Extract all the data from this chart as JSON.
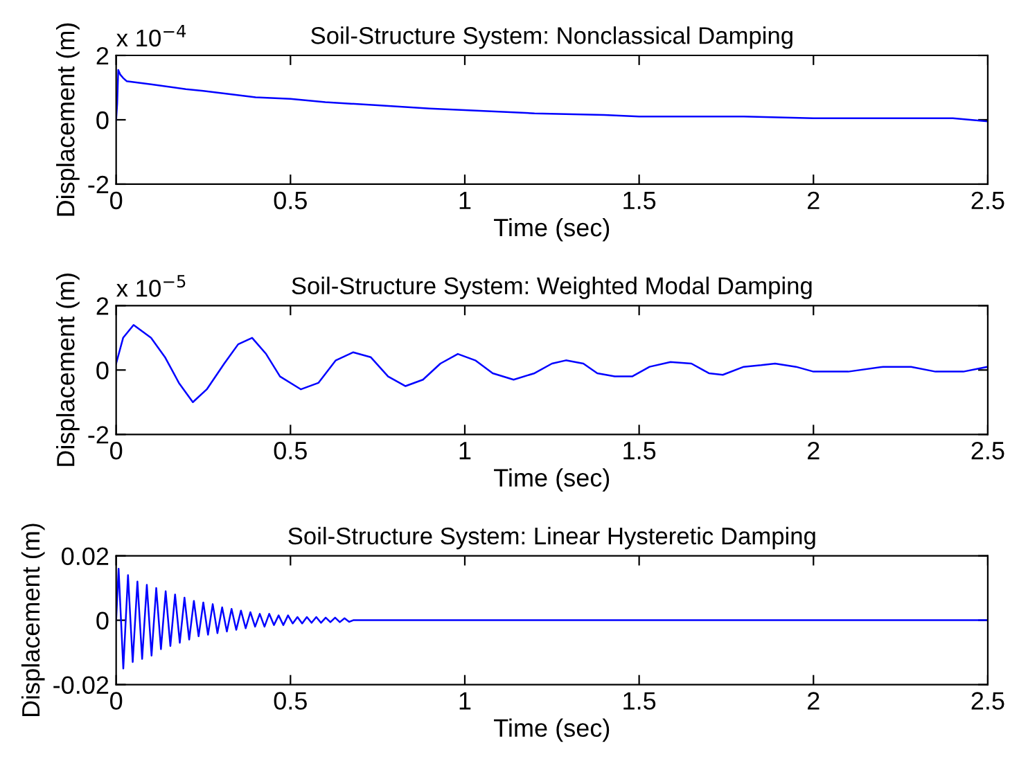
{
  "chart_data": [
    {
      "type": "line",
      "title": "Soil-Structure System: Nonclassical Damping",
      "xlabel": "Time (sec)",
      "ylabel": "Displacement (m)",
      "annotations": [
        "x 10$^{−4}$"
      ],
      "xlim": [
        0,
        2.5
      ],
      "xticks": [
        0,
        0.5,
        1,
        1.5,
        2,
        2.5
      ],
      "ylim": [
        -2,
        2
      ],
      "yticks": [
        -2,
        0,
        2
      ],
      "grid": false,
      "series": [
        {
          "color": "#0000ff",
          "x": [
            0,
            0.003,
            0.006,
            0.012,
            0.02,
            0.03,
            0.1,
            0.2,
            0.25,
            0.4,
            0.5,
            0.6,
            0.75,
            0.9,
            1.0,
            1.2,
            1.4,
            1.5,
            1.8,
            2.0,
            2.4,
            2.45,
            2.5
          ],
          "values": [
            0,
            0.5,
            1.55,
            1.4,
            1.3,
            1.2,
            1.1,
            0.95,
            0.9,
            0.7,
            0.65,
            0.55,
            0.45,
            0.35,
            0.3,
            0.2,
            0.15,
            0.1,
            0.1,
            0.05,
            0.05,
            0,
            -0.05
          ]
        }
      ]
    },
    {
      "type": "line",
      "title": "Soil-Structure System: Weighted Modal Damping",
      "xlabel": "Time (sec)",
      "ylabel": "Displacement (m)",
      "annotations": [
        "x 10$^{−5}$"
      ],
      "xlim": [
        0,
        2.5
      ],
      "xticks": [
        0,
        0.5,
        1,
        1.5,
        2,
        2.5
      ],
      "ylim": [
        -2,
        2
      ],
      "yticks": [
        -2,
        0,
        2
      ],
      "grid": false,
      "series": [
        {
          "color": "#0000ff",
          "x": [
            0,
            0.02,
            0.05,
            0.1,
            0.14,
            0.18,
            0.22,
            0.26,
            0.31,
            0.35,
            0.39,
            0.43,
            0.47,
            0.53,
            0.58,
            0.63,
            0.68,
            0.73,
            0.78,
            0.83,
            0.88,
            0.93,
            0.98,
            1.03,
            1.08,
            1.14,
            1.2,
            1.25,
            1.29,
            1.34,
            1.38,
            1.43,
            1.48,
            1.53,
            1.59,
            1.65,
            1.7,
            1.74,
            1.8,
            1.85,
            1.89,
            1.95,
            2.0,
            2.1,
            2.2,
            2.28,
            2.35,
            2.43,
            2.5
          ],
          "values": [
            0.2,
            1.0,
            1.4,
            1.0,
            0.4,
            -0.4,
            -1.0,
            -0.6,
            0.2,
            0.8,
            1.0,
            0.5,
            -0.2,
            -0.6,
            -0.4,
            0.3,
            0.55,
            0.4,
            -0.2,
            -0.5,
            -0.3,
            0.2,
            0.5,
            0.3,
            -0.1,
            -0.3,
            -0.1,
            0.2,
            0.3,
            0.2,
            -0.1,
            -0.2,
            -0.2,
            0.1,
            0.25,
            0.2,
            -0.1,
            -0.15,
            0.1,
            0.15,
            0.2,
            0.1,
            -0.05,
            -0.05,
            0.1,
            0.1,
            -0.05,
            -0.05,
            0.1
          ]
        }
      ]
    },
    {
      "type": "line",
      "title": "Soil-Structure System: Linear Hysteretic Damping",
      "xlabel": "Time (sec)",
      "ylabel": "Displacement (m)",
      "xlim": [
        0,
        2.5
      ],
      "xticks": [
        0,
        0.5,
        1,
        1.5,
        2,
        2.5
      ],
      "ylim": [
        -0.02,
        0.02
      ],
      "yticks": [
        -0.02,
        0,
        0.02
      ],
      "grid": false,
      "series": [
        {
          "color": "#0000ff",
          "x": [
            0,
            0.007,
            0.0205,
            0.034,
            0.0475,
            0.061,
            0.0745,
            0.088,
            0.1015,
            0.115,
            0.1285,
            0.142,
            0.1555,
            0.169,
            0.1825,
            0.196,
            0.2095,
            0.223,
            0.2365,
            0.25,
            0.2635,
            0.277,
            0.2905,
            0.304,
            0.3175,
            0.331,
            0.3445,
            0.358,
            0.3715,
            0.385,
            0.3985,
            0.412,
            0.4255,
            0.439,
            0.4525,
            0.466,
            0.4795,
            0.493,
            0.5065,
            0.52,
            0.5335,
            0.547,
            0.5605,
            0.574,
            0.5875,
            0.601,
            0.6145,
            0.628,
            0.6415,
            0.655,
            0.6685,
            0.68,
            2.5
          ],
          "values": [
            0,
            0.016,
            -0.015,
            0.014,
            -0.013,
            0.012,
            -0.012,
            0.011,
            -0.011,
            0.01,
            -0.009,
            0.009,
            -0.008,
            0.008,
            -0.007,
            0.007,
            -0.006,
            0.006,
            -0.005,
            0.0055,
            -0.0045,
            0.005,
            -0.004,
            0.004,
            -0.0035,
            0.0035,
            -0.003,
            0.003,
            -0.0025,
            0.0025,
            -0.002,
            0.002,
            -0.002,
            0.002,
            -0.0015,
            0.0015,
            -0.0015,
            0.0015,
            -0.001,
            0.001,
            -0.001,
            0.001,
            -0.0008,
            0.001,
            -0.0008,
            0.0008,
            -0.0006,
            0.0008,
            -0.0006,
            0.0006,
            -0.0005,
            0,
            0
          ]
        }
      ]
    }
  ]
}
